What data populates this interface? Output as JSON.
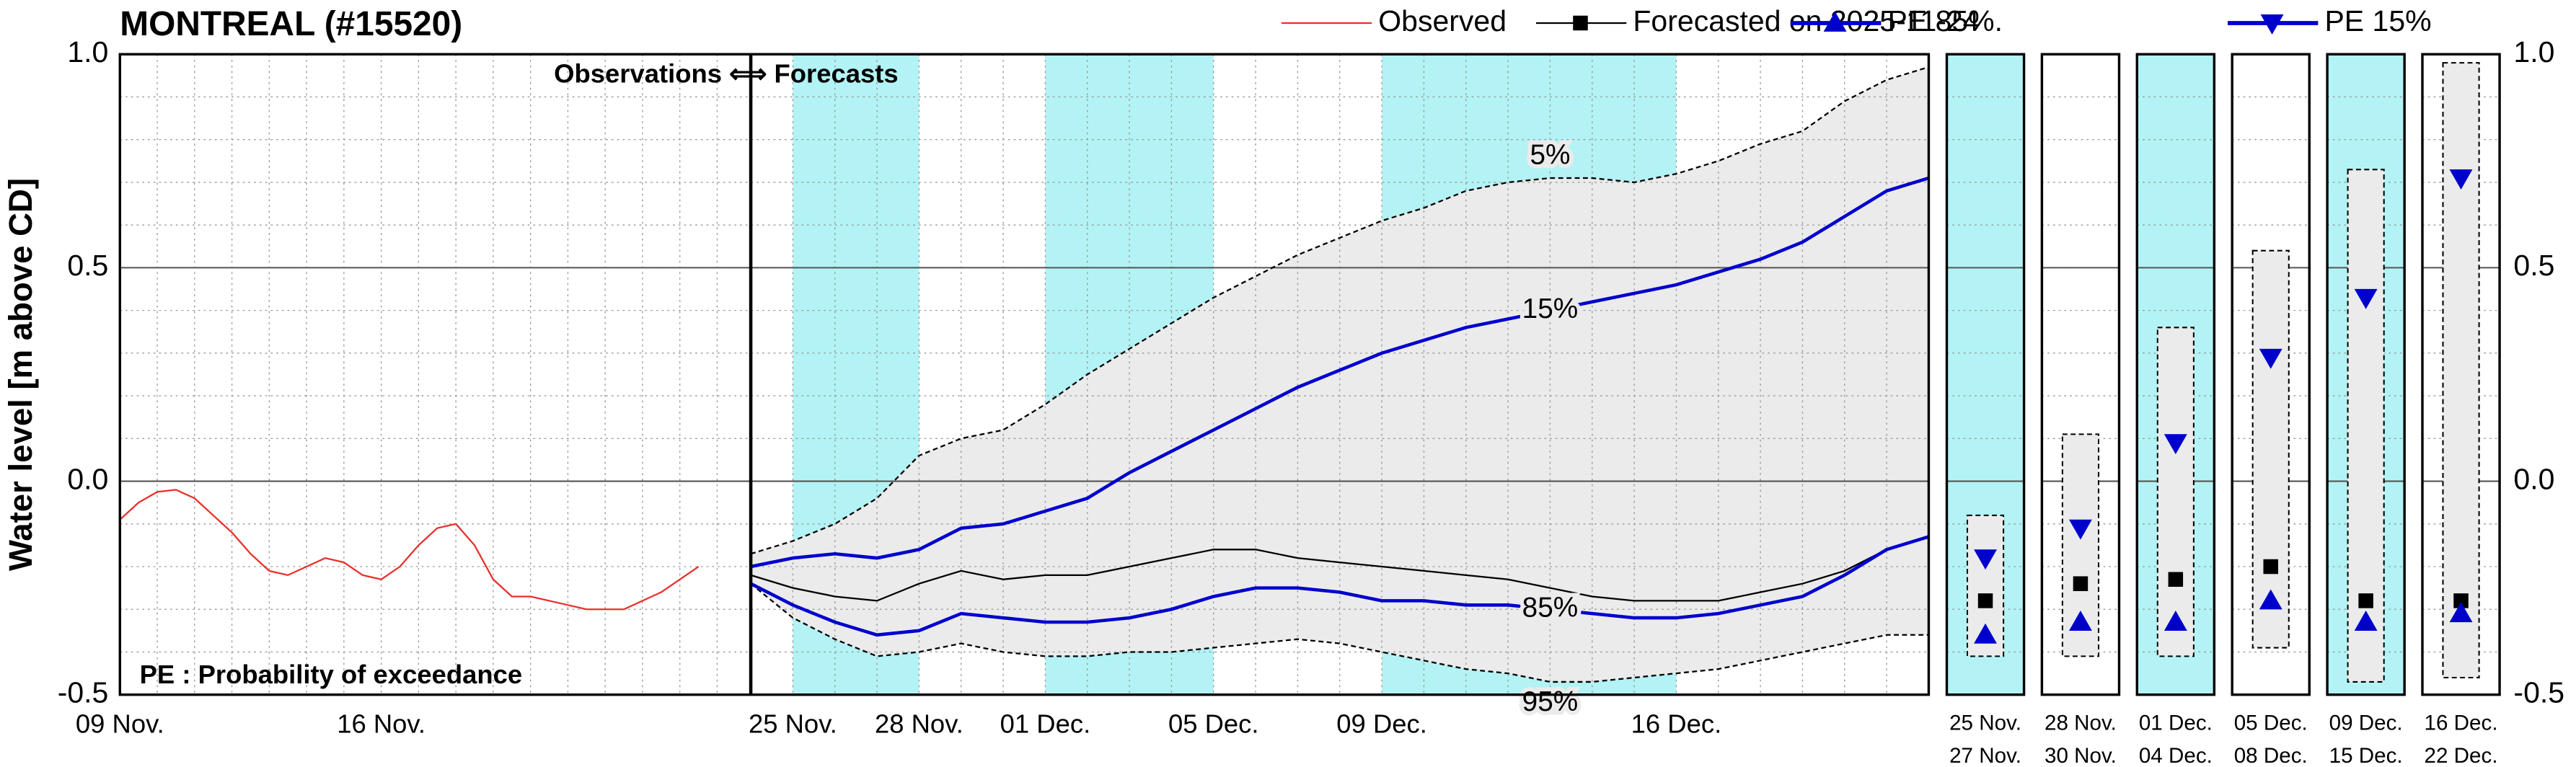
{
  "chart_data": {
    "type": "line",
    "title": "MONTREAL (#15520)",
    "ylabel": "Water level [m above CD]",
    "annotations": [
      "Observations ⟺ Forecasts",
      "PE : Probability of exceedance"
    ],
    "ylim": [
      -0.5,
      1
    ],
    "yticks": [
      -0.5,
      {
        "value": 0,
        "label": "0.0"
      },
      0.5,
      {
        "value": 1,
        "label": "1.0"
      }
    ],
    "yminor_step": 0.1,
    "xminor_step": 1,
    "grid": true,
    "observed_xlim": [
      9,
      25.9
    ],
    "observed_xticks": [
      {
        "value": 9,
        "label": "09 Nov."
      },
      {
        "value": 16,
        "label": "16 Nov."
      }
    ],
    "forecast_xlim": [
      24,
      52
    ],
    "forecast_xticks": [
      {
        "value": 25,
        "label": "25 Nov."
      },
      {
        "value": 28,
        "label": "28 Nov."
      },
      {
        "value": 31,
        "label": "01 Dec."
      },
      {
        "value": 35,
        "label": "05 Dec."
      },
      {
        "value": 39,
        "label": "09 Dec."
      },
      {
        "value": 46,
        "label": "16 Dec."
      }
    ],
    "shaded": [
      [
        25,
        28
      ],
      [
        31,
        35
      ],
      [
        39,
        46
      ]
    ],
    "shade_color": "#b3f3f5",
    "forecast_x": [
      24,
      25,
      26,
      27,
      28,
      29,
      30,
      31,
      32,
      33,
      34,
      35,
      36,
      37,
      38,
      39,
      40,
      41,
      42,
      43,
      44,
      45,
      46,
      47,
      48,
      49,
      50,
      51,
      52
    ],
    "series": [
      {
        "name": "Observed",
        "color": "#e8302a",
        "marker": "none",
        "panel": "observed",
        "x": [
          9,
          9.5,
          10,
          10.5,
          11,
          11.5,
          12,
          12.5,
          13,
          13.5,
          14,
          14.5,
          15,
          15.5,
          16,
          16.5,
          17,
          17.5,
          18,
          18.5,
          19,
          19.5,
          20,
          20.5,
          21,
          21.5,
          22,
          22.5,
          23,
          23.5,
          24,
          24.5
        ],
        "values": [
          -0.09,
          -0.05,
          -0.025,
          -0.02,
          -0.04,
          -0.08,
          -0.12,
          -0.17,
          -0.21,
          -0.22,
          -0.2,
          -0.18,
          -0.19,
          -0.22,
          -0.23,
          -0.2,
          -0.15,
          -0.11,
          -0.1,
          -0.15,
          -0.23,
          -0.27,
          -0.27,
          -0.28,
          -0.29,
          -0.3,
          -0.3,
          -0.3,
          -0.28,
          -0.26,
          -0.23,
          -0.2
        ]
      },
      {
        "name": "Forecasted on 2025-11-24",
        "color": "#000000",
        "marker": "square",
        "panel": "forecast",
        "values": [
          -0.22,
          -0.25,
          -0.27,
          -0.28,
          -0.24,
          -0.21,
          -0.23,
          -0.22,
          -0.22,
          -0.2,
          -0.18,
          -0.16,
          -0.16,
          -0.18,
          -0.19,
          -0.2,
          -0.21,
          -0.22,
          -0.23,
          -0.25,
          -0.27,
          -0.28,
          -0.28,
          -0.28,
          -0.26,
          -0.24,
          -0.21,
          -0.16,
          -0.13
        ]
      },
      {
        "name": "PE 85%.",
        "label": "85%",
        "color": "#0000cd",
        "marker": "triangle-up",
        "panel": "forecast",
        "values": [
          -0.24,
          -0.29,
          -0.33,
          -0.36,
          -0.35,
          -0.31,
          -0.32,
          -0.33,
          -0.33,
          -0.32,
          -0.3,
          -0.27,
          -0.25,
          -0.25,
          -0.26,
          -0.28,
          -0.28,
          -0.29,
          -0.29,
          -0.3,
          -0.31,
          -0.32,
          -0.32,
          -0.31,
          -0.29,
          -0.27,
          -0.22,
          -0.16,
          -0.13
        ]
      },
      {
        "name": "PE 15%",
        "label": "15%",
        "color": "#0000cd",
        "marker": "triangle-down",
        "panel": "forecast",
        "values": [
          -0.2,
          -0.18,
          -0.17,
          -0.18,
          -0.16,
          -0.11,
          -0.1,
          -0.07,
          -0.04,
          0.02,
          0.07,
          0.12,
          0.17,
          0.22,
          0.26,
          0.3,
          0.33,
          0.36,
          0.38,
          0.4,
          0.42,
          0.44,
          0.46,
          0.49,
          0.52,
          0.56,
          0.62,
          0.68,
          0.71
        ]
      }
    ],
    "envelope": {
      "upper_label": "5%",
      "lower_label": "95%",
      "fill": "#ebebeb",
      "upper": [
        -0.17,
        -0.14,
        -0.1,
        -0.04,
        0.06,
        0.1,
        0.12,
        0.18,
        0.25,
        0.31,
        0.37,
        0.43,
        0.48,
        0.53,
        0.57,
        0.61,
        0.64,
        0.68,
        0.7,
        0.71,
        0.71,
        0.7,
        0.72,
        0.75,
        0.79,
        0.82,
        0.89,
        0.94,
        0.97
      ],
      "lower": [
        -0.24,
        -0.32,
        -0.37,
        -0.41,
        -0.4,
        -0.38,
        -0.4,
        -0.41,
        -0.41,
        -0.4,
        -0.4,
        -0.39,
        -0.38,
        -0.37,
        -0.38,
        -0.4,
        -0.42,
        -0.44,
        -0.45,
        -0.47,
        -0.47,
        -0.46,
        -0.45,
        -0.44,
        -0.42,
        -0.4,
        -0.38,
        -0.36,
        -0.36
      ]
    },
    "weekly": [
      {
        "period": [
          "25 Nov.",
          "27 Nov."
        ],
        "shaded": true,
        "range": [
          -0.41,
          -0.08
        ],
        "forecast": -0.28,
        "pe85": -0.36,
        "pe15": -0.18
      },
      {
        "period": [
          "28 Nov.",
          "30 Nov."
        ],
        "shaded": false,
        "range": [
          -0.41,
          0.11
        ],
        "forecast": -0.24,
        "pe85": -0.33,
        "pe15": -0.11
      },
      {
        "period": [
          "01 Dec.",
          "04 Dec."
        ],
        "shaded": true,
        "range": [
          -0.41,
          0.36
        ],
        "forecast": -0.23,
        "pe85": -0.33,
        "pe15": 0.09
      },
      {
        "period": [
          "05 Dec.",
          "08 Dec."
        ],
        "shaded": false,
        "range": [
          -0.39,
          0.54
        ],
        "forecast": -0.2,
        "pe85": -0.28,
        "pe15": 0.29
      },
      {
        "period": [
          "09 Dec.",
          "15 Dec."
        ],
        "shaded": true,
        "range": [
          -0.47,
          0.73
        ],
        "forecast": -0.28,
        "pe85": -0.33,
        "pe15": 0.43
      },
      {
        "period": [
          "16 Dec.",
          "22 Dec."
        ],
        "shaded": false,
        "range": [
          -0.46,
          0.98
        ],
        "forecast": -0.28,
        "pe85": -0.31,
        "pe15": 0.71
      }
    ]
  }
}
